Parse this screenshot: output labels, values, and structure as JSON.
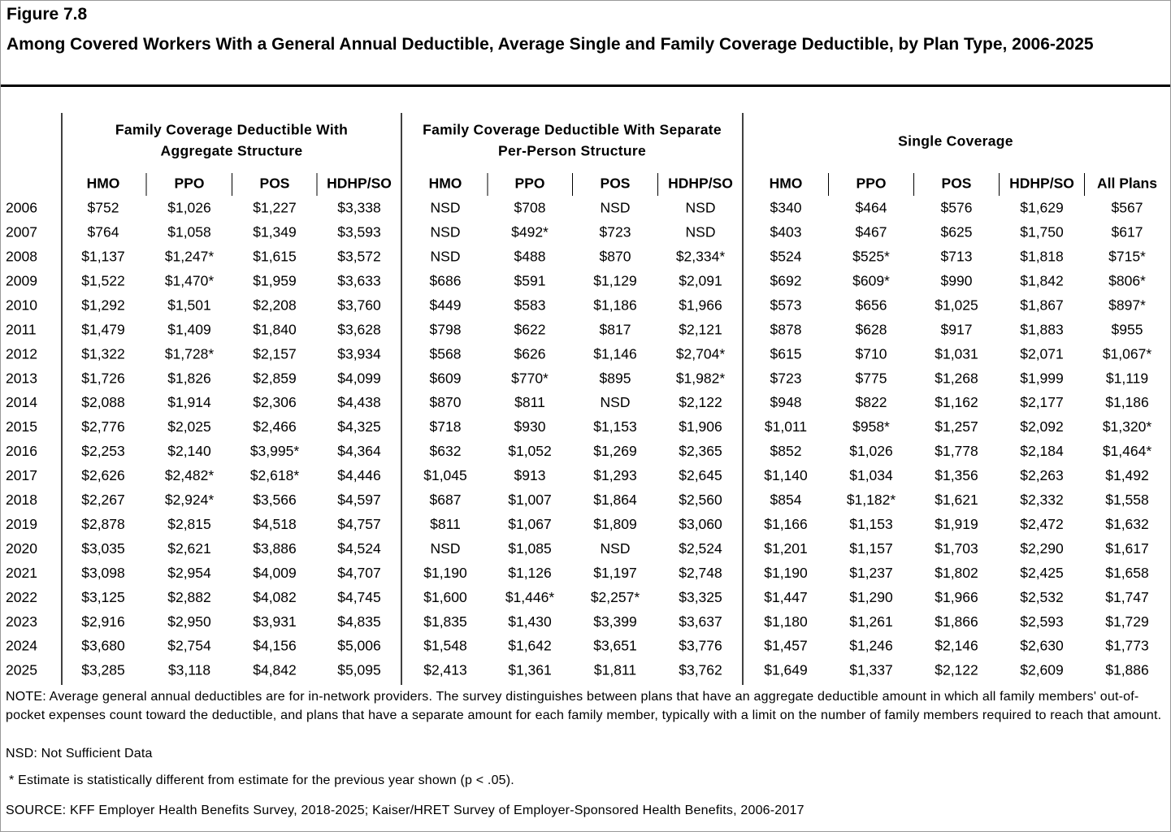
{
  "header": {
    "figure": "Figure 7.8",
    "title": "Among Covered Workers With a General Annual Deductible, Average Single and Family Coverage Deductible, by Plan Type, 2006-2025"
  },
  "table": {
    "groups": [
      {
        "lines": [
          "Family Coverage Deductible With",
          "Aggregate Structure"
        ]
      },
      {
        "lines": [
          "Family Coverage Deductible With Separate",
          "Per-Person Structure"
        ]
      },
      {
        "lines": [
          "Single Coverage"
        ]
      }
    ],
    "columns": [
      "HMO",
      "PPO",
      "POS",
      "HDHP/SO",
      "HMO",
      "PPO",
      "POS",
      "HDHP/SO",
      "HMO",
      "PPO",
      "POS",
      "HDHP/SO",
      "All Plans"
    ],
    "rows": [
      [
        "2006",
        "$752",
        "$1,026",
        "$1,227",
        "$3,338",
        "NSD",
        "$708",
        "NSD",
        "NSD",
        "$340",
        "$464",
        "$576",
        "$1,629",
        "$567"
      ],
      [
        "2007",
        "$764",
        "$1,058",
        "$1,349",
        "$3,593",
        "NSD",
        "$492*",
        "$723",
        "NSD",
        "$403",
        "$467",
        "$625",
        "$1,750",
        "$617"
      ],
      [
        "2008",
        "$1,137",
        "$1,247*",
        "$1,615",
        "$3,572",
        "NSD",
        "$488",
        "$870",
        "$2,334*",
        "$524",
        "$525*",
        "$713",
        "$1,818",
        "$715*"
      ],
      [
        "2009",
        "$1,522",
        "$1,470*",
        "$1,959",
        "$3,633",
        "$686",
        "$591",
        "$1,129",
        "$2,091",
        "$692",
        "$609*",
        "$990",
        "$1,842",
        "$806*"
      ],
      [
        "2010",
        "$1,292",
        "$1,501",
        "$2,208",
        "$3,760",
        "$449",
        "$583",
        "$1,186",
        "$1,966",
        "$573",
        "$656",
        "$1,025",
        "$1,867",
        "$897*"
      ],
      [
        "2011",
        "$1,479",
        "$1,409",
        "$1,840",
        "$3,628",
        "$798",
        "$622",
        "$817",
        "$2,121",
        "$878",
        "$628",
        "$917",
        "$1,883",
        "$955"
      ],
      [
        "2012",
        "$1,322",
        "$1,728*",
        "$2,157",
        "$3,934",
        "$568",
        "$626",
        "$1,146",
        "$2,704*",
        "$615",
        "$710",
        "$1,031",
        "$2,071",
        "$1,067*"
      ],
      [
        "2013",
        "$1,726",
        "$1,826",
        "$2,859",
        "$4,099",
        "$609",
        "$770*",
        "$895",
        "$1,982*",
        "$723",
        "$775",
        "$1,268",
        "$1,999",
        "$1,119"
      ],
      [
        "2014",
        "$2,088",
        "$1,914",
        "$2,306",
        "$4,438",
        "$870",
        "$811",
        "NSD",
        "$2,122",
        "$948",
        "$822",
        "$1,162",
        "$2,177",
        "$1,186"
      ],
      [
        "2015",
        "$2,776",
        "$2,025",
        "$2,466",
        "$4,325",
        "$718",
        "$930",
        "$1,153",
        "$1,906",
        "$1,011",
        "$958*",
        "$1,257",
        "$2,092",
        "$1,320*"
      ],
      [
        "2016",
        "$2,253",
        "$2,140",
        "$3,995*",
        "$4,364",
        "$632",
        "$1,052",
        "$1,269",
        "$2,365",
        "$852",
        "$1,026",
        "$1,778",
        "$2,184",
        "$1,464*"
      ],
      [
        "2017",
        "$2,626",
        "$2,482*",
        "$2,618*",
        "$4,446",
        "$1,045",
        "$913",
        "$1,293",
        "$2,645",
        "$1,140",
        "$1,034",
        "$1,356",
        "$2,263",
        "$1,492"
      ],
      [
        "2018",
        "$2,267",
        "$2,924*",
        "$3,566",
        "$4,597",
        "$687",
        "$1,007",
        "$1,864",
        "$2,560",
        "$854",
        "$1,182*",
        "$1,621",
        "$2,332",
        "$1,558"
      ],
      [
        "2019",
        "$2,878",
        "$2,815",
        "$4,518",
        "$4,757",
        "$811",
        "$1,067",
        "$1,809",
        "$3,060",
        "$1,166",
        "$1,153",
        "$1,919",
        "$2,472",
        "$1,632"
      ],
      [
        "2020",
        "$3,035",
        "$2,621",
        "$3,886",
        "$4,524",
        "NSD",
        "$1,085",
        "NSD",
        "$2,524",
        "$1,201",
        "$1,157",
        "$1,703",
        "$2,290",
        "$1,617"
      ],
      [
        "2021",
        "$3,098",
        "$2,954",
        "$4,009",
        "$4,707",
        "$1,190",
        "$1,126",
        "$1,197",
        "$2,748",
        "$1,190",
        "$1,237",
        "$1,802",
        "$2,425",
        "$1,658"
      ],
      [
        "2022",
        "$3,125",
        "$2,882",
        "$4,082",
        "$4,745",
        "$1,600",
        "$1,446*",
        "$2,257*",
        "$3,325",
        "$1,447",
        "$1,290",
        "$1,966",
        "$2,532",
        "$1,747"
      ],
      [
        "2023",
        "$2,916",
        "$2,950",
        "$3,931",
        "$4,835",
        "$1,835",
        "$1,430",
        "$3,399",
        "$3,637",
        "$1,180",
        "$1,261",
        "$1,866",
        "$2,593",
        "$1,729"
      ],
      [
        "2024",
        "$3,680",
        "$2,754",
        "$4,156",
        "$5,006",
        "$1,548",
        "$1,642",
        "$3,651",
        "$3,776",
        "$1,457",
        "$1,246",
        "$2,146",
        "$2,630",
        "$1,773"
      ],
      [
        "2025",
        "$3,285",
        "$3,118",
        "$4,842",
        "$5,095",
        "$2,413",
        "$1,361",
        "$1,811",
        "$3,762",
        "$1,649",
        "$1,337",
        "$2,122",
        "$2,609",
        "$1,886"
      ]
    ]
  },
  "notes": {
    "note": "NOTE: Average general annual deductibles are for in-network providers. The survey distinguishes between plans that have an aggregate deductible amount in which all family members' out-of-pocket expenses count toward the deductible, and plans that have a separate amount for each family member, typically with a limit on the number of family members required to reach that amount.",
    "nsd": "NSD: Not Sufficient Data",
    "asterisk": "* Estimate is statistically different from estimate for the previous year shown (p < .05).",
    "source": "SOURCE: KFF Employer Health Benefits Survey, 2018-2025; Kaiser/HRET Survey of Employer-Sponsored Health Benefits, 2006-2017"
  }
}
